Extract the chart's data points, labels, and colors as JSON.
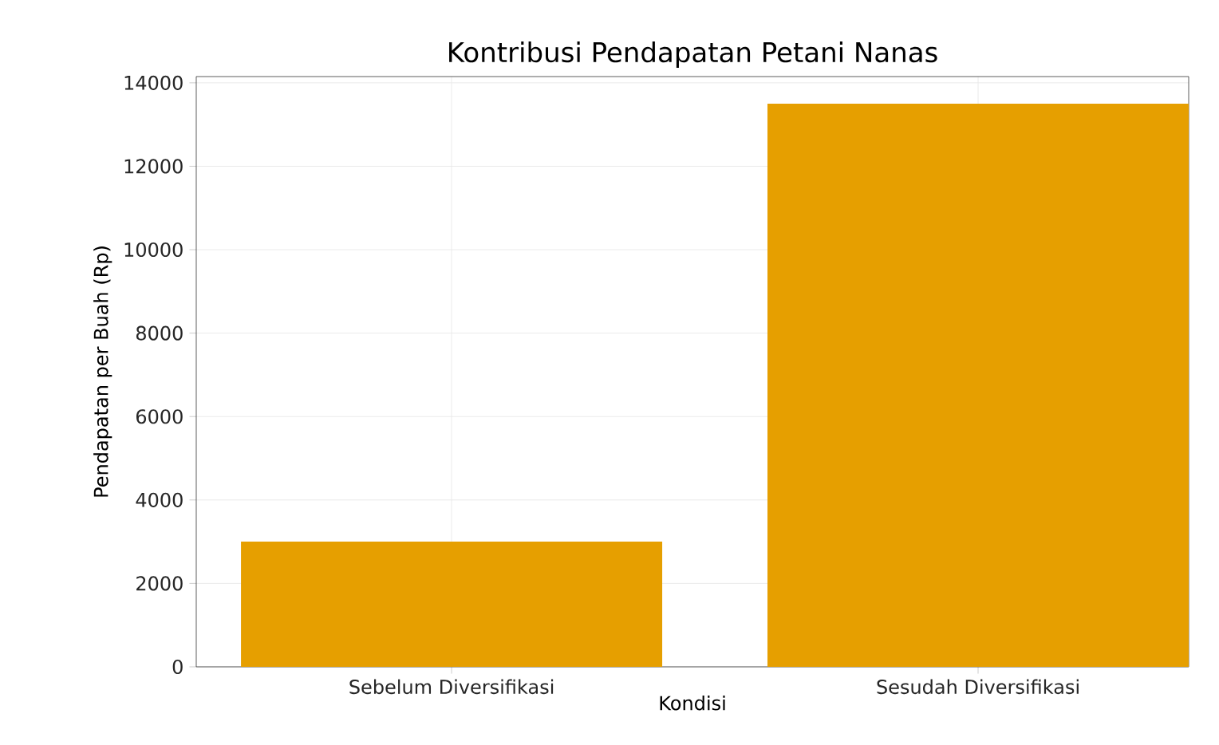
{
  "chart_data": {
    "type": "bar",
    "title": "Kontribusi Pendapatan Petani Nanas",
    "xlabel": "Kondisi",
    "ylabel": "Pendapatan per Buah (Rp)",
    "categories": [
      "Sebelum Diversifikasi",
      "Sesudah Diversifikasi"
    ],
    "values": [
      3000,
      13500
    ],
    "color": "#e69f00",
    "ylim": [
      0,
      14150
    ],
    "yticks": [
      0,
      2000,
      4000,
      6000,
      8000,
      10000,
      12000,
      14000
    ],
    "grid": true
  }
}
